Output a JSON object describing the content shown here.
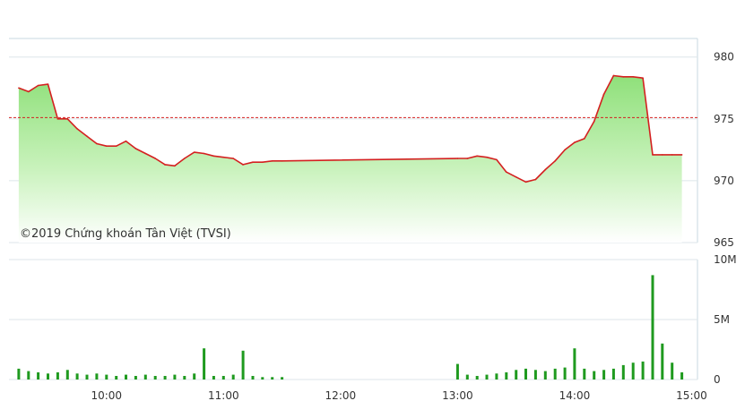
{
  "chart_data": [
    {
      "type": "area",
      "reference_line": 975.1,
      "ylim": [
        965,
        981.5
      ],
      "y_ticks": [
        "980",
        "975",
        "970",
        "965"
      ],
      "y_tick_values": [
        980,
        975,
        970,
        965
      ],
      "x_ticks": [
        "10:00",
        "11:00",
        "12:00",
        "13:00",
        "14:00",
        "15:00"
      ],
      "watermark": "©2019 Chứng khoán Tân Việt (TVSI)",
      "colors": {
        "line": "#d42020",
        "reference": "#d42020",
        "area_top": "#8fe07a",
        "area_bottom": "#ffffff"
      },
      "x": [
        "09:15",
        "09:20",
        "09:25",
        "09:30",
        "09:35",
        "09:40",
        "09:45",
        "09:50",
        "09:55",
        "10:00",
        "10:05",
        "10:10",
        "10:15",
        "10:20",
        "10:25",
        "10:30",
        "10:35",
        "10:40",
        "10:45",
        "10:50",
        "10:55",
        "11:00",
        "11:05",
        "11:10",
        "11:15",
        "11:20",
        "11:25",
        "11:30",
        "13:00",
        "13:05",
        "13:10",
        "13:15",
        "13:20",
        "13:25",
        "13:30",
        "13:35",
        "13:40",
        "13:45",
        "13:50",
        "13:55",
        "14:00",
        "14:05",
        "14:10",
        "14:15",
        "14:20",
        "14:25",
        "14:30",
        "14:35",
        "14:40",
        "14:45",
        "14:50",
        "14:55"
      ],
      "values": [
        977.5,
        977.2,
        977.7,
        977.8,
        975.0,
        975.0,
        974.2,
        973.6,
        973.0,
        972.8,
        972.8,
        973.2,
        972.6,
        972.2,
        971.8,
        971.3,
        971.2,
        971.8,
        972.3,
        972.2,
        972.0,
        971.9,
        971.8,
        971.3,
        971.5,
        971.5,
        971.6,
        971.6,
        971.8,
        971.8,
        972.0,
        971.9,
        971.7,
        970.7,
        970.3,
        969.9,
        970.1,
        970.9,
        971.6,
        972.5,
        973.1,
        973.4,
        974.8,
        977.0,
        978.5,
        978.4,
        978.4,
        978.3,
        972.1,
        972.1,
        972.1,
        972.1
      ]
    },
    {
      "type": "bar",
      "ylim": [
        0,
        10000000
      ],
      "y_ticks": [
        "10M",
        "5M",
        "0"
      ],
      "y_tick_values": [
        10000000,
        5000000,
        0
      ],
      "x_ticks": [
        "10:00",
        "11:00",
        "12:00",
        "13:00",
        "14:00",
        "15:00"
      ],
      "colors": {
        "bar": "#1f9a1f"
      },
      "x": [
        "09:15",
        "09:20",
        "09:25",
        "09:30",
        "09:35",
        "09:40",
        "09:45",
        "09:50",
        "09:55",
        "10:00",
        "10:05",
        "10:10",
        "10:15",
        "10:20",
        "10:25",
        "10:30",
        "10:35",
        "10:40",
        "10:45",
        "10:50",
        "10:55",
        "11:00",
        "11:05",
        "11:10",
        "11:15",
        "11:20",
        "11:25",
        "11:30",
        "13:00",
        "13:05",
        "13:10",
        "13:15",
        "13:20",
        "13:25",
        "13:30",
        "13:35",
        "13:40",
        "13:45",
        "13:50",
        "13:55",
        "14:00",
        "14:05",
        "14:10",
        "14:15",
        "14:20",
        "14:25",
        "14:30",
        "14:35",
        "14:40",
        "14:45",
        "14:50",
        "14:55"
      ],
      "values": [
        900000,
        700000,
        600000,
        500000,
        600000,
        800000,
        500000,
        400000,
        500000,
        400000,
        300000,
        400000,
        300000,
        400000,
        300000,
        300000,
        400000,
        300000,
        500000,
        2600000,
        300000,
        300000,
        400000,
        2400000,
        300000,
        200000,
        200000,
        200000,
        1300000,
        400000,
        300000,
        400000,
        500000,
        600000,
        800000,
        900000,
        800000,
        700000,
        900000,
        1000000,
        2600000,
        900000,
        700000,
        800000,
        900000,
        1200000,
        1400000,
        1500000,
        8700000,
        3000000,
        1400000,
        600000
      ]
    }
  ]
}
